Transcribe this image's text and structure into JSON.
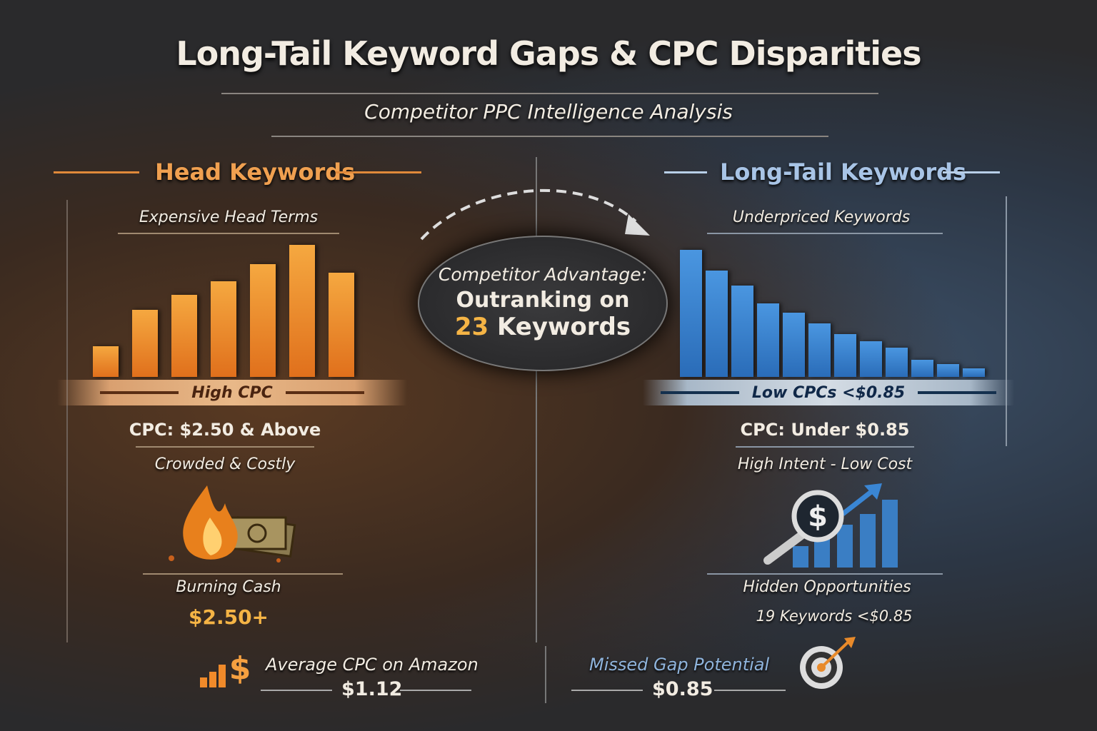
{
  "title": "Long-Tail Keyword Gaps & CPC Disparities",
  "subtitle": "Competitor PPC Intelligence Analysis",
  "colors": {
    "head_accent": "#f0a050",
    "longtail_accent": "#8fb4dc",
    "orange_bar": "#f08a2a",
    "blue_bar": "#3a86d4",
    "gold": "#f5b445"
  },
  "left": {
    "heading": "Head Keywords",
    "chart_title": "Expensive Head Terms",
    "bar_values": [
      43,
      94,
      115,
      134,
      158,
      185,
      146
    ],
    "banner": "High CPC",
    "cpc": "CPC: $2.50 & Above",
    "desc": "Crowded & Costly",
    "icon": "burning-cash-icon",
    "icon_label": "Burning Cash",
    "value": "$2.50+"
  },
  "center": {
    "line1": "Competitor Advantage:",
    "line2": "Outranking on",
    "count": "23",
    "line3": "Keywords"
  },
  "right": {
    "heading": "Long-Tail Keywords",
    "chart_title": "Underpriced Keywords",
    "bar_values": [
      178,
      149,
      128,
      103,
      90,
      75,
      60,
      50,
      41,
      24,
      18,
      12
    ],
    "banner": "Low CPCs <$0.85",
    "cpc": "CPC: Under $0.85",
    "desc": "High Intent - Low Cost",
    "icon": "magnifier-dollar-growth-icon",
    "icon_label": "Hidden Opportunities",
    "value": "19 Keywords <$0.85"
  },
  "footer": {
    "left_label": "Average CPC on Amazon",
    "left_value": "$1.12",
    "left_icon": "dollar-bars-icon",
    "right_label": "Missed Gap Potential",
    "right_value": "$0.85",
    "right_icon": "target-icon"
  }
}
